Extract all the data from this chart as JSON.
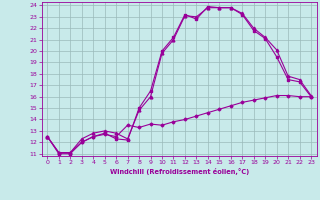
{
  "xlabel": "Windchill (Refroidissement éolien,°C)",
  "bg_color": "#c8eaea",
  "line_color": "#990099",
  "grid_color": "#9bbaba",
  "xlim": [
    -0.5,
    23.5
  ],
  "ylim": [
    10.8,
    24.3
  ],
  "xticks": [
    0,
    1,
    2,
    3,
    4,
    5,
    6,
    7,
    8,
    9,
    10,
    11,
    12,
    13,
    14,
    15,
    16,
    17,
    18,
    19,
    20,
    21,
    22,
    23
  ],
  "yticks": [
    11,
    12,
    13,
    14,
    15,
    16,
    17,
    18,
    19,
    20,
    21,
    22,
    23,
    24
  ],
  "curve1_x": [
    0,
    1,
    2,
    3,
    4,
    5,
    6,
    7,
    8,
    9,
    10,
    11,
    12,
    13,
    14,
    15,
    16,
    17,
    18,
    19,
    20,
    21,
    22,
    23
  ],
  "curve1_y": [
    12.5,
    11.0,
    11.0,
    12.0,
    12.5,
    12.8,
    12.3,
    12.2,
    15.0,
    16.5,
    20.0,
    21.2,
    23.2,
    22.8,
    23.9,
    23.8,
    23.8,
    23.2,
    21.8,
    21.1,
    19.5,
    17.5,
    17.3,
    16.0
  ],
  "curve2_x": [
    0,
    1,
    2,
    3,
    4,
    5,
    6,
    7,
    8,
    9,
    10,
    11,
    12,
    13,
    14,
    15,
    16,
    17,
    18,
    19,
    20,
    21,
    22,
    23
  ],
  "curve2_y": [
    12.5,
    11.1,
    11.1,
    12.3,
    12.8,
    13.0,
    12.8,
    12.3,
    14.8,
    16.0,
    19.8,
    21.0,
    23.1,
    23.0,
    23.8,
    23.8,
    23.8,
    23.3,
    22.0,
    21.2,
    20.1,
    17.8,
    17.5,
    16.1
  ],
  "curve3_x": [
    0,
    1,
    2,
    3,
    4,
    5,
    6,
    7,
    8,
    9,
    10,
    11,
    12,
    13,
    14,
    15,
    16,
    17,
    18,
    19,
    20,
    21,
    22,
    23
  ],
  "curve3_y": [
    12.5,
    11.1,
    11.1,
    12.0,
    12.5,
    12.7,
    12.5,
    13.5,
    13.3,
    13.6,
    13.5,
    13.8,
    14.0,
    14.3,
    14.6,
    14.9,
    15.2,
    15.5,
    15.7,
    15.9,
    16.1,
    16.1,
    16.0,
    16.0
  ]
}
